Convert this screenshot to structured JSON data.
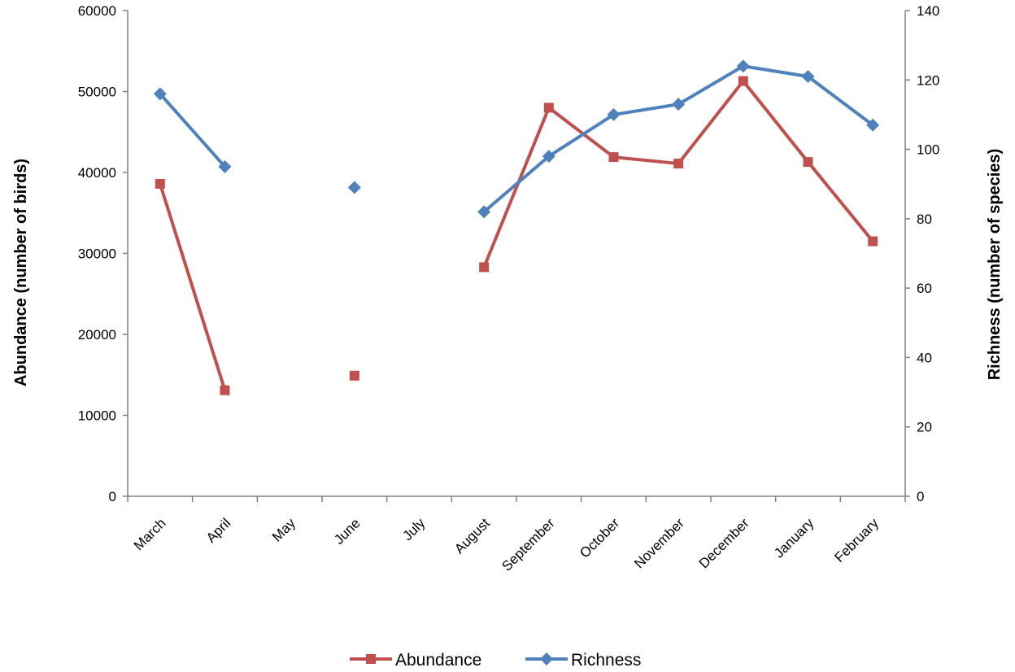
{
  "chart_data": {
    "type": "line",
    "title": "",
    "categories": [
      "March",
      "April",
      "May",
      "June",
      "July",
      "August",
      "September",
      "October",
      "November",
      "December",
      "January",
      "February"
    ],
    "y_left": {
      "label": "Abundance (number of birds)",
      "lim": [
        0,
        60000
      ],
      "ticks": [
        "0",
        "10000",
        "20000",
        "30000",
        "40000",
        "50000",
        "60000"
      ]
    },
    "y_right": {
      "label": "Richness (number of species)",
      "lim": [
        0,
        140
      ],
      "ticks": [
        "0",
        "20",
        "40",
        "60",
        "80",
        "100",
        "120",
        "140"
      ]
    },
    "series": [
      {
        "name": "Abundance",
        "axis": "left",
        "color": "#c0504d",
        "marker": "square",
        "values": [
          38600,
          13100,
          null,
          14900,
          null,
          28300,
          48000,
          41900,
          41100,
          51300,
          41300,
          31500
        ]
      },
      {
        "name": "Richness",
        "axis": "right",
        "color": "#4f81bd",
        "marker": "diamond",
        "values": [
          116,
          95,
          null,
          89,
          null,
          82,
          98,
          110,
          113,
          124,
          121,
          107
        ]
      }
    ],
    "grid": false,
    "legend_position": "bottom"
  }
}
